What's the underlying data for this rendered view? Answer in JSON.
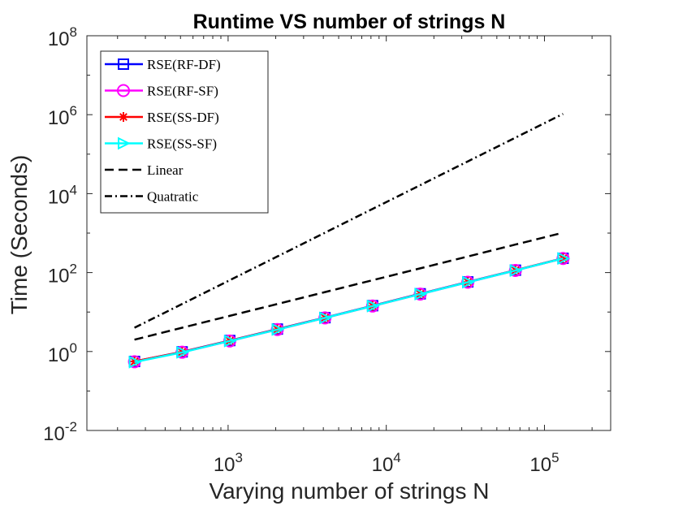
{
  "chart_data": {
    "type": "line",
    "title": "Runtime VS number of strings N",
    "xlabel": "Varying number of strings N",
    "ylabel": "Time (Seconds)",
    "xscale": "log",
    "yscale": "log",
    "xlim": [
      128,
      262144
    ],
    "ylim": [
      0.01,
      100000000
    ],
    "grid": false,
    "legend_position": "top-left",
    "x_ticks": [
      {
        "value": 1000,
        "base": "10",
        "exp": "3"
      },
      {
        "value": 10000,
        "base": "10",
        "exp": "4"
      },
      {
        "value": 100000,
        "base": "10",
        "exp": "5"
      }
    ],
    "y_ticks": [
      {
        "value": 0.01,
        "base": "10",
        "exp": "-2"
      },
      {
        "value": 1,
        "base": "10",
        "exp": "0"
      },
      {
        "value": 100,
        "base": "10",
        "exp": "2"
      },
      {
        "value": 10000,
        "base": "10",
        "exp": "4"
      },
      {
        "value": 1000000,
        "base": "10",
        "exp": "6"
      },
      {
        "value": 100000000,
        "base": "10",
        "exp": "8"
      }
    ],
    "x": [
      256,
      512,
      1024,
      2048,
      4096,
      8192,
      16384,
      32768,
      65536,
      131072
    ],
    "series": [
      {
        "name": "RSE(RF-DF)",
        "color": "#0000ff",
        "marker": "square",
        "dash": "solid",
        "values": [
          0.56,
          0.98,
          1.9,
          3.7,
          7.2,
          14.5,
          29,
          58,
          115,
          230
        ]
      },
      {
        "name": "RSE(RF-SF)",
        "color": "#ff00ff",
        "marker": "circle",
        "dash": "solid",
        "values": [
          0.55,
          0.96,
          1.85,
          3.6,
          7.1,
          14.2,
          28.5,
          57,
          113,
          228
        ]
      },
      {
        "name": "RSE(SS-DF)",
        "color": "#ff0000",
        "marker": "asterisk",
        "dash": "solid",
        "values": [
          0.56,
          0.97,
          1.88,
          3.65,
          7.15,
          14.3,
          28.7,
          57.5,
          114,
          229
        ]
      },
      {
        "name": "RSE(SS-SF)",
        "color": "#00ffff",
        "marker": "triangle-right",
        "dash": "solid",
        "values": [
          0.54,
          0.95,
          1.85,
          3.6,
          7.1,
          14.2,
          28.5,
          57,
          113,
          228
        ]
      },
      {
        "name": "Linear",
        "color": "#000000",
        "marker": "none",
        "dash": "dashed",
        "values": [
          2,
          4,
          8,
          16,
          32,
          64,
          128,
          256,
          512,
          1024
        ]
      },
      {
        "name": "Quatratic",
        "color": "#000000",
        "marker": "none",
        "dash": "dashdot",
        "values": [
          4,
          16,
          64,
          256,
          1024,
          4096,
          16384,
          65536,
          262144,
          1048576
        ]
      }
    ]
  }
}
